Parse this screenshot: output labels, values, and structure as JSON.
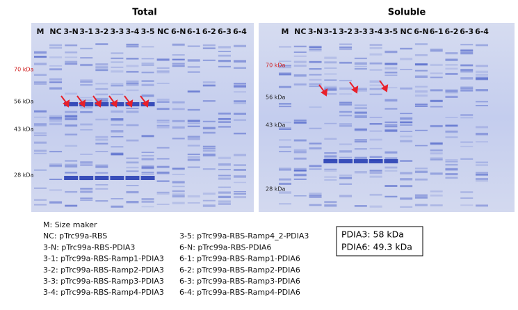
{
  "panels": [
    {
      "title": "Total",
      "lanes": [
        "M",
        "NC",
        "3-N",
        "3-1",
        "3-2",
        "3-3",
        "3-4",
        "3-5",
        "NC",
        "6-N",
        "6-1",
        "6-2",
        "6-3",
        "6-4"
      ],
      "markers": [
        "70 kDa",
        "56 kDa",
        "43 kDa",
        "28 kDa"
      ]
    },
    {
      "title": "Soluble",
      "lanes": [
        "M",
        "NC",
        "3-N",
        "3-1",
        "3-2",
        "3-3",
        "3-4",
        "3-5",
        "NC",
        "6-N",
        "6-1",
        "6-2",
        "6-3",
        "6-4"
      ],
      "markers": [
        "70 kDa",
        "56 kDa",
        "43 kDa",
        "28 kDa"
      ]
    }
  ],
  "legend": {
    "left": [
      "M: Size maker",
      "NC: pTrc99a-RBS",
      "3-N: pTrc99a-RBS-PDIA3",
      "3-1: pTrc99a-RBS-Ramp1-PDIA3",
      "3-2: pTrc99a-RBS-Ramp2-PDIA3",
      "3-3: pTrc99a-RBS-Ramp3-PDIA3",
      "3-4: pTrc99a-RBS-Ramp4-PDIA3"
    ],
    "right": [
      "3-5: pTrc99a-RBS-Ramp4_2-PDIA3",
      "6-N: pTrc99a-RBS-PDIA6",
      "6-1: pTrc99a-RBS-Ramp1-PDIA6",
      "6-2: pTrc99a-RBS-Ramp2-PDIA6",
      "6-3: pTrc99a-RBS-Ramp3-PDIA6",
      "6-4: pTrc99a-RBS-Ramp4-PDIA6"
    ]
  },
  "sizes": [
    "PDIA3: 58 kDa",
    "PDIA6: 49.3 kDa"
  ]
}
